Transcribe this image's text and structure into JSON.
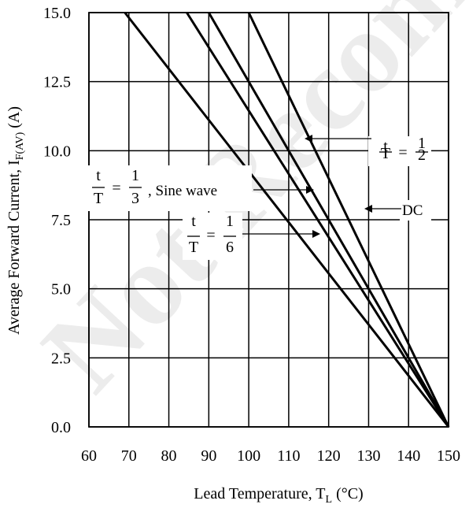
{
  "watermark": "Not Recommended",
  "chart_data": {
    "type": "line",
    "xlabel": "Lead Temperature, T",
    "xlabel_sub": "L",
    "xlabel_unit": " (°C)",
    "ylabel": "Average Forward Current, I",
    "ylabel_sub": "F(AV)",
    "ylabel_unit": " (A)",
    "xlim": [
      60,
      150
    ],
    "ylim": [
      0,
      15
    ],
    "x_ticks": [
      "60",
      "70",
      "80",
      "90",
      "100",
      "110",
      "120",
      "130",
      "140",
      "150"
    ],
    "y_ticks": [
      "0.0",
      "2.5",
      "5.0",
      "7.5",
      "10.0",
      "12.5",
      "15.0"
    ],
    "grid": true,
    "series": [
      {
        "key": "t6",
        "points": [
          [
            69,
            15.0
          ],
          [
            150,
            0.0
          ]
        ]
      },
      {
        "key": "sine",
        "points": [
          [
            84.5,
            15.0
          ],
          [
            150,
            0.0
          ]
        ]
      },
      {
        "key": "t2",
        "points": [
          [
            90,
            15.0
          ],
          [
            150,
            0.0
          ]
        ]
      },
      {
        "key": "dc",
        "points": [
          [
            100,
            15.0
          ],
          [
            150,
            0.0
          ]
        ]
      }
    ],
    "annotations": {
      "t2": {
        "num": "t",
        "den": "T",
        "eq": "=",
        "val_num": "1",
        "val_den": "2",
        "suffix": ""
      },
      "sine": {
        "num": "t",
        "den": "T",
        "eq": "=",
        "val_num": "1",
        "val_den": "3",
        "suffix": ", Sine wave"
      },
      "t6": {
        "num": "t",
        "den": "T",
        "eq": "=",
        "val_num": "1",
        "val_den": "6",
        "suffix": ""
      },
      "dc": {
        "label": "DC"
      }
    }
  }
}
